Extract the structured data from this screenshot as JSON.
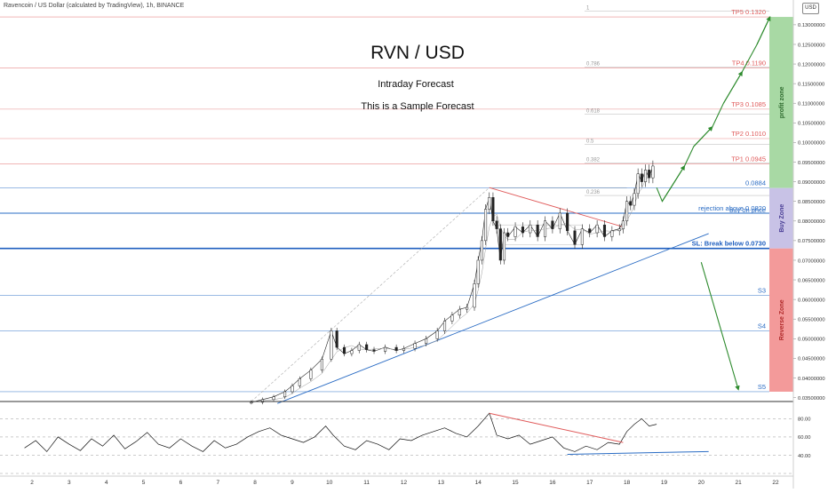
{
  "header": {
    "symbol_line": "Ravencoin / US Dollar (calculated by TradingView), 1h, BINANCE",
    "currency_badge": "USD"
  },
  "annotations": {
    "title": "RVN / USD",
    "subtitle": "Intraday Forecast",
    "note": "This is a Sample Forecast"
  },
  "colors": {
    "tp": "#e05a5a",
    "support": "#2a6cc4",
    "sl": "#1f5fbf",
    "profit_zone": "#a8d9a4",
    "buy_zone": "#c8c2e6",
    "reverse_zone": "#f39a9a",
    "arrow": "#2e8b2e"
  },
  "chart_data": {
    "type": "line",
    "price_axis": {
      "ylim": [
        0.034,
        0.1345
      ],
      "ticks": [
        0.035,
        0.04,
        0.045,
        0.05,
        0.055,
        0.06,
        0.065,
        0.07,
        0.075,
        0.08,
        0.085,
        0.09,
        0.095,
        0.1,
        0.105,
        0.11,
        0.115,
        0.12,
        0.125,
        0.13
      ],
      "tick_labels": [
        "0.03500000",
        "0.04000000",
        "0.04500000",
        "0.05000000",
        "0.05500000",
        "0.06000000",
        "0.06500000",
        "0.07000000",
        "0.07500000",
        "0.08000000",
        "0.08500000",
        "0.09000000",
        "0.09500000",
        "0.10000000",
        "0.10500000",
        "0.11000000",
        "0.11500000",
        "0.12000000",
        "0.12500000",
        "0.13000000"
      ]
    },
    "x_axis": {
      "ticks": [
        "2",
        "3",
        "4",
        "5",
        "6",
        "7",
        "8",
        "9",
        "10",
        "11",
        "12",
        "13",
        "14",
        "15",
        "16",
        "17",
        "18",
        "19",
        "20",
        "21",
        "22"
      ]
    },
    "levels": [
      {
        "price": 0.132,
        "label": "TP5 0.1320",
        "kind": "tp"
      },
      {
        "price": 0.119,
        "label": "TP4 0.1190",
        "kind": "tp"
      },
      {
        "price": 0.1085,
        "label": "TP3 0.1085",
        "kind": "tp"
      },
      {
        "price": 0.101,
        "label": "TP2 0.1010",
        "kind": "tp"
      },
      {
        "price": 0.0945,
        "label": "TP1 0.0945",
        "kind": "tp"
      },
      {
        "price": 0.0884,
        "label": "0.0884",
        "kind": "support"
      },
      {
        "price": 0.082,
        "label": "rejection above 0.0820",
        "kind": "support"
      },
      {
        "price": 0.073,
        "label": "SL: Break below 0.0730",
        "kind": "sl"
      },
      {
        "price": 0.061,
        "label": "S3",
        "kind": "support"
      },
      {
        "price": 0.052,
        "label": "S4",
        "kind": "support"
      },
      {
        "price": 0.0365,
        "label": "S5",
        "kind": "support"
      }
    ],
    "buy_on_price_label": "buy on price",
    "fib_levels": [
      {
        "ratio": "1",
        "price": 0.1335
      },
      {
        "ratio": "0.786",
        "price": 0.1192
      },
      {
        "ratio": "0.618",
        "price": 0.1072
      },
      {
        "ratio": "0.5",
        "price": 0.0995
      },
      {
        "ratio": "0.382",
        "price": 0.0948
      },
      {
        "ratio": "0.236",
        "price": 0.0865
      }
    ],
    "zones": [
      {
        "label": "profit zone",
        "from": 0.0884,
        "to": 0.132,
        "kind": "profit_zone"
      },
      {
        "label": "Buy Zone",
        "from": 0.073,
        "to": 0.0884,
        "kind": "buy_zone"
      },
      {
        "label": "Reverse Zone",
        "from": 0.0365,
        "to": 0.073,
        "kind": "reverse_zone"
      }
    ],
    "price_series": [
      [
        7.9,
        0.0338
      ],
      [
        8.2,
        0.0345
      ],
      [
        8.5,
        0.0352
      ],
      [
        8.8,
        0.0365
      ],
      [
        9.0,
        0.038
      ],
      [
        9.2,
        0.0398
      ],
      [
        9.5,
        0.042
      ],
      [
        9.8,
        0.0448
      ],
      [
        10.05,
        0.052
      ],
      [
        10.2,
        0.0478
      ],
      [
        10.4,
        0.0462
      ],
      [
        10.6,
        0.047
      ],
      [
        10.8,
        0.0485
      ],
      [
        11.0,
        0.0472
      ],
      [
        11.2,
        0.0468
      ],
      [
        11.5,
        0.0478
      ],
      [
        11.8,
        0.047
      ],
      [
        12.0,
        0.0475
      ],
      [
        12.3,
        0.0488
      ],
      [
        12.6,
        0.05
      ],
      [
        12.9,
        0.052
      ],
      [
        13.1,
        0.0545
      ],
      [
        13.3,
        0.056
      ],
      [
        13.5,
        0.0575
      ],
      [
        13.7,
        0.058
      ],
      [
        13.9,
        0.064
      ],
      [
        14.0,
        0.07
      ],
      [
        14.1,
        0.075
      ],
      [
        14.2,
        0.083
      ],
      [
        14.3,
        0.086
      ],
      [
        14.4,
        0.08
      ],
      [
        14.5,
        0.078
      ],
      [
        14.6,
        0.07
      ],
      [
        14.7,
        0.077
      ],
      [
        14.8,
        0.076
      ],
      [
        15.0,
        0.0785
      ],
      [
        15.2,
        0.077
      ],
      [
        15.4,
        0.079
      ],
      [
        15.6,
        0.076
      ],
      [
        15.8,
        0.08
      ],
      [
        16.0,
        0.078
      ],
      [
        16.2,
        0.082
      ],
      [
        16.4,
        0.0775
      ],
      [
        16.6,
        0.074
      ],
      [
        16.8,
        0.078
      ],
      [
        17.0,
        0.077
      ],
      [
        17.2,
        0.079
      ],
      [
        17.4,
        0.076
      ],
      [
        17.6,
        0.0775
      ],
      [
        17.8,
        0.078
      ],
      [
        17.9,
        0.08
      ],
      [
        18.0,
        0.085
      ],
      [
        18.1,
        0.084
      ],
      [
        18.2,
        0.087
      ],
      [
        18.3,
        0.092
      ],
      [
        18.4,
        0.09
      ],
      [
        18.5,
        0.093
      ],
      [
        18.6,
        0.091
      ],
      [
        18.7,
        0.094
      ]
    ],
    "trendlines": [
      {
        "name": "ascending support",
        "from": [
          8.6,
          0.0335
        ],
        "to": [
          20.2,
          0.0768
        ]
      },
      {
        "name": "descending resistance",
        "from": [
          14.3,
          0.0885
        ],
        "to": [
          17.9,
          0.0785
        ]
      }
    ],
    "forecast_path": [
      [
        18.8,
        0.0885
      ],
      [
        18.95,
        0.085
      ],
      [
        19.55,
        0.094
      ],
      [
        19.8,
        0.099
      ],
      [
        20.3,
        0.104
      ],
      [
        20.6,
        0.11
      ],
      [
        21.1,
        0.118
      ],
      [
        21.5,
        0.125
      ],
      [
        21.85,
        0.132
      ]
    ],
    "reverse_path": {
      "from": [
        20.0,
        0.0695
      ],
      "to": [
        21.0,
        0.037
      ]
    },
    "rsi": {
      "ylim": [
        20,
        95
      ],
      "ticks": [
        20,
        40,
        60,
        80
      ],
      "tick_labels": [
        "",
        "40.00",
        "60.00",
        "80.00"
      ],
      "series": [
        [
          1.8,
          48
        ],
        [
          2.1,
          56
        ],
        [
          2.4,
          44
        ],
        [
          2.7,
          60
        ],
        [
          3.0,
          52
        ],
        [
          3.3,
          45
        ],
        [
          3.6,
          58
        ],
        [
          3.9,
          50
        ],
        [
          4.2,
          62
        ],
        [
          4.5,
          47
        ],
        [
          4.8,
          55
        ],
        [
          5.1,
          65
        ],
        [
          5.4,
          52
        ],
        [
          5.7,
          48
        ],
        [
          6.0,
          58
        ],
        [
          6.3,
          50
        ],
        [
          6.6,
          44
        ],
        [
          6.9,
          56
        ],
        [
          7.2,
          48
        ],
        [
          7.5,
          52
        ],
        [
          7.8,
          60
        ],
        [
          8.1,
          66
        ],
        [
          8.4,
          70
        ],
        [
          8.7,
          62
        ],
        [
          9.0,
          58
        ],
        [
          9.3,
          54
        ],
        [
          9.6,
          60
        ],
        [
          9.9,
          72
        ],
        [
          10.1,
          62
        ],
        [
          10.4,
          50
        ],
        [
          10.7,
          46
        ],
        [
          11.0,
          56
        ],
        [
          11.3,
          52
        ],
        [
          11.6,
          46
        ],
        [
          11.9,
          58
        ],
        [
          12.2,
          56
        ],
        [
          12.5,
          62
        ],
        [
          12.8,
          66
        ],
        [
          13.1,
          70
        ],
        [
          13.4,
          64
        ],
        [
          13.7,
          60
        ],
        [
          14.0,
          72
        ],
        [
          14.3,
          86
        ],
        [
          14.5,
          62
        ],
        [
          14.8,
          58
        ],
        [
          15.1,
          62
        ],
        [
          15.4,
          52
        ],
        [
          15.7,
          56
        ],
        [
          16.0,
          60
        ],
        [
          16.3,
          48
        ],
        [
          16.6,
          44
        ],
        [
          16.9,
          50
        ],
        [
          17.2,
          46
        ],
        [
          17.5,
          54
        ],
        [
          17.8,
          52
        ],
        [
          18.0,
          66
        ],
        [
          18.2,
          74
        ],
        [
          18.4,
          80
        ],
        [
          18.6,
          72
        ],
        [
          18.8,
          74
        ]
      ],
      "trendlines": [
        {
          "name": "rsi descending",
          "from": [
            14.3,
            86
          ],
          "to": [
            17.9,
            54
          ]
        },
        {
          "name": "rsi support",
          "from": [
            16.4,
            41
          ],
          "to": [
            20.2,
            44
          ]
        }
      ]
    }
  }
}
